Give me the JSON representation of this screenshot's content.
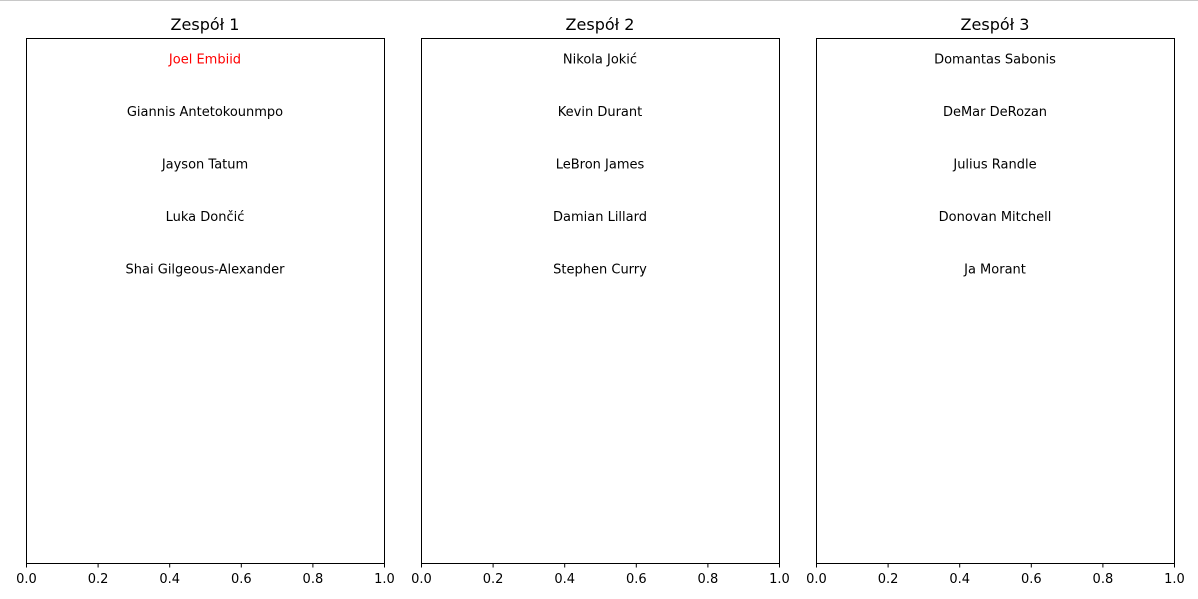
{
  "chart_data": [
    {
      "type": "table",
      "title": "Zespół 1",
      "xlim": [
        0,
        1
      ],
      "x_ticks": [
        "0.0",
        "0.2",
        "0.4",
        "0.6",
        "0.8",
        "1.0"
      ],
      "y_ticks": [],
      "grid": false,
      "players": [
        {
          "name": "Joel Embiid",
          "color": "#ff0000"
        },
        {
          "name": "Giannis Antetokounmpo",
          "color": "#000000"
        },
        {
          "name": "Jayson Tatum",
          "color": "#000000"
        },
        {
          "name": "Luka Dončić",
          "color": "#000000"
        },
        {
          "name": "Shai Gilgeous-Alexander",
          "color": "#000000"
        }
      ]
    },
    {
      "type": "table",
      "title": "Zespół 2",
      "xlim": [
        0,
        1
      ],
      "x_ticks": [
        "0.0",
        "0.2",
        "0.4",
        "0.6",
        "0.8",
        "1.0"
      ],
      "y_ticks": [],
      "grid": false,
      "players": [
        {
          "name": "Nikola Jokić",
          "color": "#000000"
        },
        {
          "name": "Kevin Durant",
          "color": "#000000"
        },
        {
          "name": "LeBron James",
          "color": "#000000"
        },
        {
          "name": "Damian Lillard",
          "color": "#000000"
        },
        {
          "name": "Stephen Curry",
          "color": "#000000"
        }
      ]
    },
    {
      "type": "table",
      "title": "Zespół 3",
      "xlim": [
        0,
        1
      ],
      "x_ticks": [
        "0.0",
        "0.2",
        "0.4",
        "0.6",
        "0.8",
        "1.0"
      ],
      "y_ticks": [],
      "grid": false,
      "players": [
        {
          "name": "Domantas Sabonis",
          "color": "#000000"
        },
        {
          "name": "DeMar DeRozan",
          "color": "#000000"
        },
        {
          "name": "Julius Randle",
          "color": "#000000"
        },
        {
          "name": "Donovan Mitchell",
          "color": "#000000"
        },
        {
          "name": "Ja Morant",
          "color": "#000000"
        }
      ]
    }
  ]
}
